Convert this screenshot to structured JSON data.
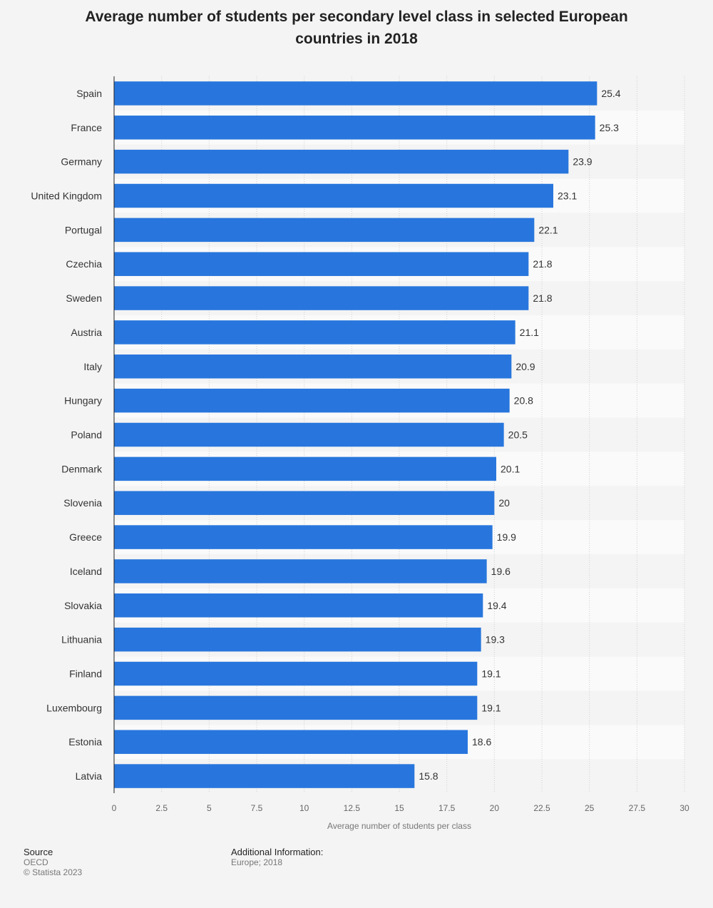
{
  "chart_data": {
    "type": "bar",
    "orientation": "horizontal",
    "title": "Average number of students per secondary level class in selected European countries in 2018",
    "xlabel": "Average number of students per class",
    "ylabel": "",
    "xlim": [
      0,
      30
    ],
    "ticks": [
      "0",
      "2.5",
      "5",
      "7.5",
      "10",
      "12.5",
      "15",
      "17.5",
      "20",
      "22.5",
      "25",
      "27.5",
      "30"
    ],
    "tick_values": [
      0,
      2.5,
      5,
      7.5,
      10,
      12.5,
      15,
      17.5,
      20,
      22.5,
      25,
      27.5,
      30
    ],
    "categories": [
      "Spain",
      "France",
      "Germany",
      "United Kingdom",
      "Portugal",
      "Czechia",
      "Sweden",
      "Austria",
      "Italy",
      "Hungary",
      "Poland",
      "Denmark",
      "Slovenia",
      "Greece",
      "Iceland",
      "Slovakia",
      "Lithuania",
      "Finland",
      "Luxembourg",
      "Estonia",
      "Latvia"
    ],
    "values": [
      25.4,
      25.3,
      23.9,
      23.1,
      22.1,
      21.8,
      21.8,
      21.1,
      20.9,
      20.8,
      20.5,
      20.1,
      20,
      19.9,
      19.6,
      19.4,
      19.3,
      19.1,
      19.1,
      18.6,
      15.8
    ],
    "value_labels": [
      "25.4",
      "25.3",
      "23.9",
      "23.1",
      "22.1",
      "21.8",
      "21.8",
      "21.1",
      "20.9",
      "20.8",
      "20.5",
      "20.1",
      "20",
      "19.9",
      "19.6",
      "19.4",
      "19.3",
      "19.1",
      "19.1",
      "18.6",
      "15.8"
    ],
    "bar_color": "#2876dd",
    "grid": true
  },
  "footer": {
    "source_label": "Source",
    "source_value": "OECD",
    "copyright": "© Statista 2023",
    "additional_label": "Additional Information:",
    "additional_value": "Europe; 2018"
  }
}
